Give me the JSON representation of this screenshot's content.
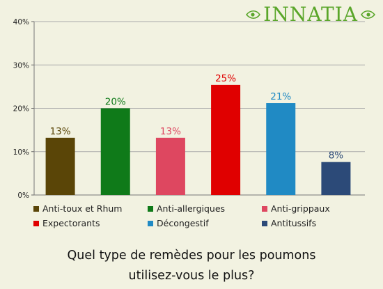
{
  "logo": {
    "text": "INNATIA"
  },
  "question": {
    "line1": "Quel type de remèdes pour les poumons",
    "line2": "utilisez-vous le plus?"
  },
  "chart_data": {
    "type": "bar",
    "categories": [
      "Anti-toux et Rhum",
      "Anti-allergiques",
      "Anti-grippaux",
      "Expectorants",
      "Décongestif",
      "Antitussifs"
    ],
    "values": [
      13.2,
      20,
      13.2,
      25.4,
      21.2,
      7.6
    ],
    "data_labels": [
      "13%",
      "20%",
      "13%",
      "25%",
      "21%",
      "8%"
    ],
    "colors": [
      "#5a4507",
      "#0f7a19",
      "#de4760",
      "#e00000",
      "#208ac4",
      "#2c4a78"
    ],
    "yticks": [
      "0%",
      "10%",
      "20%",
      "30%",
      "40%"
    ],
    "ylim": [
      0,
      40
    ],
    "grid": true,
    "legend_position": "bottom",
    "title": "",
    "xlabel": "",
    "ylabel": ""
  }
}
